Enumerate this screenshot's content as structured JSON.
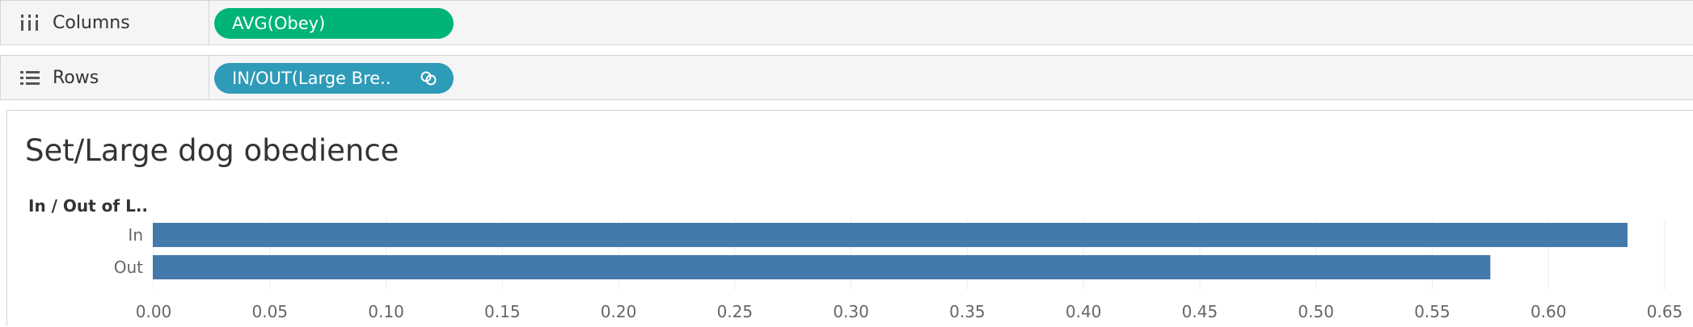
{
  "shelves": {
    "columns": {
      "label": "Columns",
      "pill": "AVG(Obey)",
      "icon": "columns-icon"
    },
    "rows": {
      "label": "Rows",
      "pill": "IN/OUT(Large Bre..",
      "icon": "rows-icon",
      "pill_icon": "set-link-icon"
    }
  },
  "colors": {
    "columns_pill": "#00b476",
    "rows_pill": "#2e9bb8",
    "bar": "#4479ab"
  },
  "chart_data": {
    "type": "bar",
    "orientation": "horizontal",
    "title": "Set/Large dog obedience",
    "row_header": "In / Out of L..",
    "categories": [
      "In",
      "Out"
    ],
    "values": [
      0.634,
      0.575
    ],
    "xlim": [
      0.0,
      0.65
    ],
    "xticks": [
      0.0,
      0.05,
      0.1,
      0.15,
      0.2,
      0.25,
      0.3,
      0.35,
      0.4,
      0.45,
      0.5,
      0.55,
      0.6,
      0.65
    ],
    "xtick_labels": [
      "0.00",
      "0.05",
      "0.10",
      "0.15",
      "0.20",
      "0.25",
      "0.30",
      "0.35",
      "0.40",
      "0.45",
      "0.50",
      "0.55",
      "0.60",
      "0.65"
    ],
    "xlabel": "",
    "grid": true
  }
}
